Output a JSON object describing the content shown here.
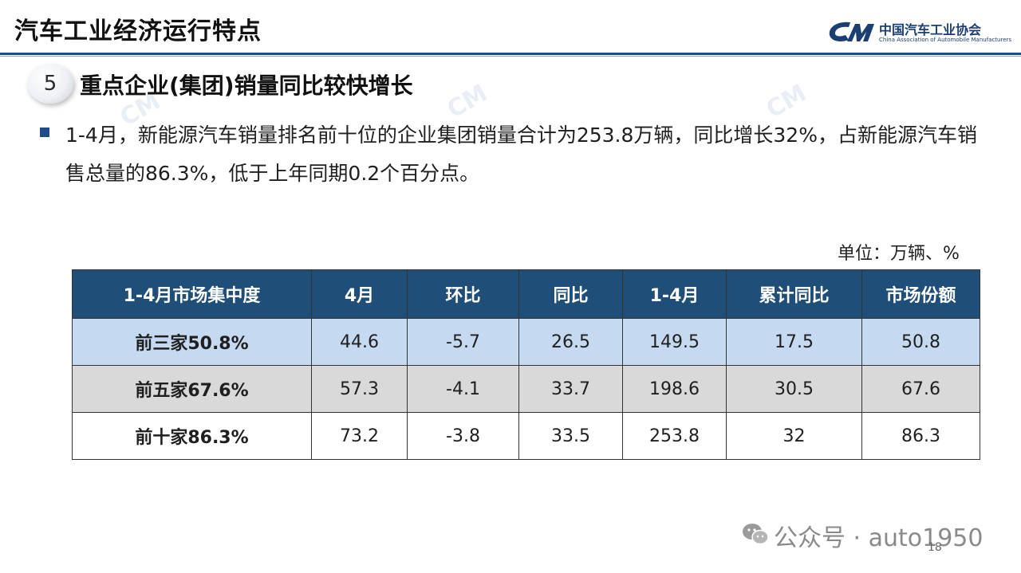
{
  "header": {
    "title": "汽车工业经济运行特点",
    "logo_cn": "中国汽车工业协会",
    "logo_en": "China Association of Automobile Manufacturers"
  },
  "section": {
    "number": "5",
    "title": "重点企业(集团)销量同比较快增长"
  },
  "bullet": {
    "text": "1-4月，新能源汽车销量排名前十位的企业集团销量合计为253.8万辆，同比增长32%，占新能源汽车销售总量的86.3%，低于上年同期0.2个百分点。"
  },
  "unit": "单位：万辆、%",
  "table": {
    "headers": [
      "1-4月市场集中度",
      "4月",
      "环比",
      "同比",
      "1-4月",
      "累计同比",
      "市场份额"
    ],
    "rows": [
      [
        "前三家50.8%",
        "44.6",
        "-5.7",
        "26.5",
        "149.5",
        "17.5",
        "50.8"
      ],
      [
        "前五家67.6%",
        "57.3",
        "-4.1",
        "33.7",
        "198.6",
        "30.5",
        "67.6"
      ],
      [
        "前十家86.3%",
        "73.2",
        "-3.8",
        "33.5",
        "253.8",
        "32",
        "86.3"
      ]
    ]
  },
  "footer": {
    "wechat_text": "公众号 · auto1950",
    "page_number": "18"
  },
  "colors": {
    "header_blue": "#1f4e79",
    "row1": "#c5daf0",
    "row2": "#d9d9d9",
    "row3": "#ffffff"
  }
}
